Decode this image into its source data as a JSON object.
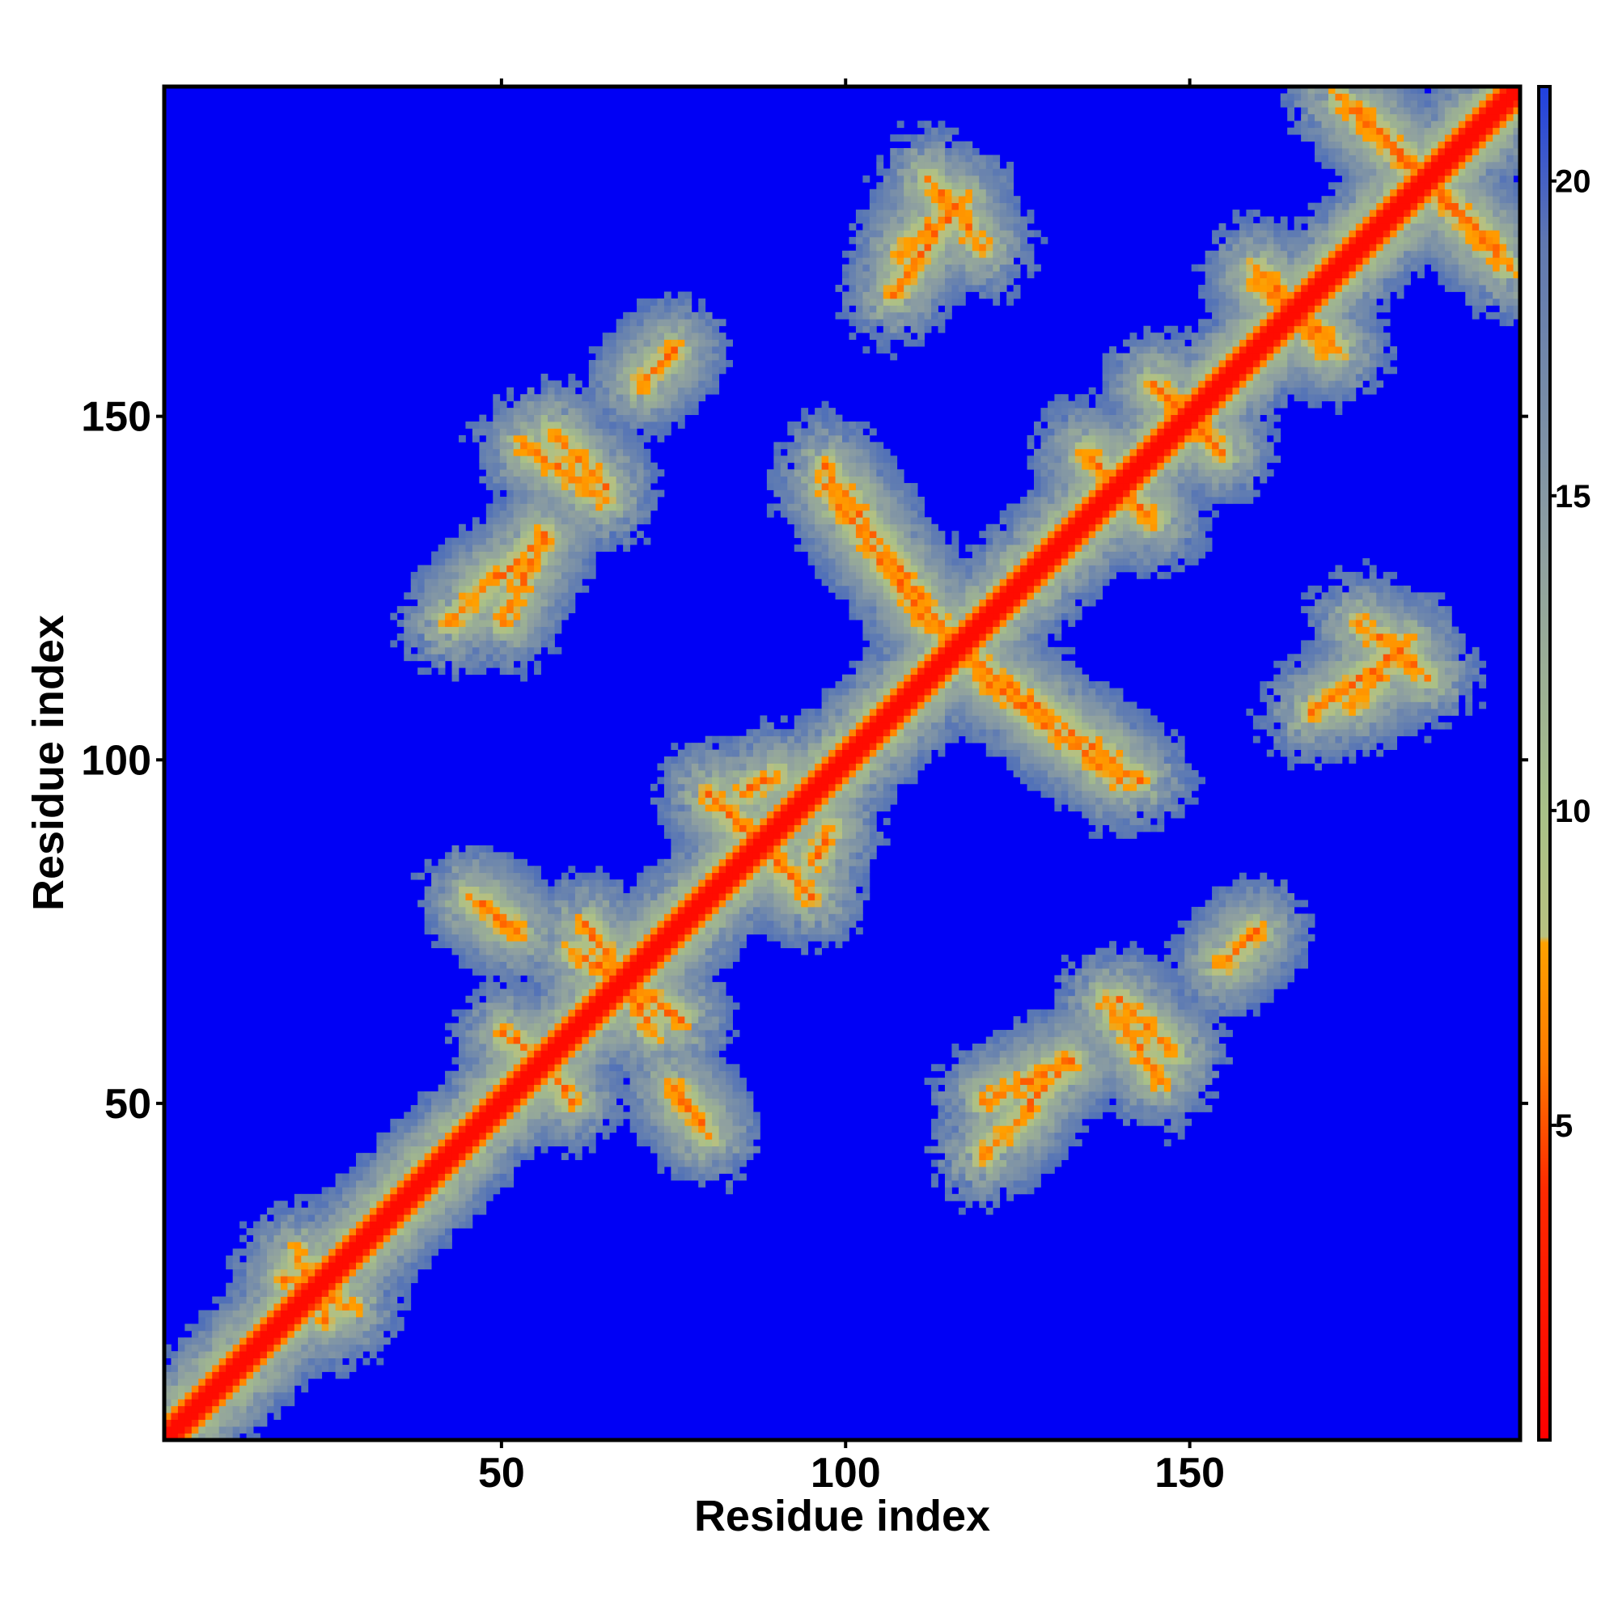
{
  "chart_data": {
    "type": "heatmap",
    "title": "",
    "xlabel": "Residue index",
    "ylabel": "Residue index",
    "xlim": [
      1,
      198
    ],
    "ylim": [
      1,
      198
    ],
    "n_residues": 198,
    "x_ticks": [
      50,
      100,
      150
    ],
    "y_ticks": [
      50,
      100,
      150
    ],
    "x_tick_labels": [
      "50",
      "100",
      "150"
    ],
    "y_tick_labels": [
      "50",
      "100",
      "150"
    ],
    "colorbar": {
      "range": [
        0,
        21.5
      ],
      "ticks": [
        5,
        10,
        15,
        20
      ],
      "tick_labels": [
        "5",
        "10",
        "15",
        "20"
      ],
      "color_stops": [
        {
          "value": 0,
          "color": "#ff0000"
        },
        {
          "value": 4,
          "color": "#ff2a00"
        },
        {
          "value": 6,
          "color": "#ff7a00"
        },
        {
          "value": 7.5,
          "color": "#ffa000"
        },
        {
          "value": 8,
          "color": "#b8c080"
        },
        {
          "value": 10,
          "color": "#a8c088"
        },
        {
          "value": 14,
          "color": "#8fa0a0"
        },
        {
          "value": 20,
          "color": "#5070b8"
        },
        {
          "value": 20.01,
          "color": "#0000f5"
        }
      ]
    },
    "cutoff_color": "#0000f5",
    "diagonal": {
      "from": 1,
      "to": 198,
      "band_width": 3
    },
    "contacts": [
      {
        "i": 50,
        "j": 120,
        "i_end": 56,
        "j_end": 133,
        "kind": "parallel"
      },
      {
        "i": 53,
        "j": 146,
        "i_end": 65,
        "j_end": 138,
        "kind": "antiparallel"
      },
      {
        "i": 70,
        "j": 155,
        "i_end": 75,
        "j_end": 160,
        "kind": "parallel"
      },
      {
        "i": 97,
        "j": 143,
        "i_end": 115,
        "j_end": 118,
        "kind": "antiparallel"
      },
      {
        "i": 108,
        "j": 174,
        "i_end": 117,
        "j_end": 182,
        "kind": "parallel"
      },
      {
        "i": 120,
        "j": 112,
        "i_end": 140,
        "j_end": 97,
        "kind": "antiparallel"
      },
      {
        "i": 120,
        "j": 42,
        "i_end": 133,
        "j_end": 56,
        "kind": "parallel"
      },
      {
        "i": 140,
        "j": 65,
        "i_end": 148,
        "j_end": 57,
        "kind": "antiparallel"
      },
      {
        "i": 168,
        "j": 107,
        "i_end": 181,
        "j_end": 116,
        "kind": "parallel"
      },
      {
        "i": 172,
        "j": 197,
        "i_end": 195,
        "j_end": 175,
        "kind": "antiparallel"
      },
      {
        "i": 47,
        "j": 79,
        "i_end": 52,
        "j_end": 75,
        "kind": "antiparallel"
      },
      {
        "i": 60,
        "j": 72,
        "i_end": 76,
        "j_end": 62,
        "kind": "antiparallel"
      },
      {
        "i": 75,
        "j": 52,
        "i_end": 80,
        "j_end": 45,
        "kind": "antiparallel"
      },
      {
        "i": 56,
        "j": 56,
        "i_end": 60,
        "j_end": 50,
        "kind": "antiparallel"
      },
      {
        "i": 18,
        "j": 24,
        "i_end": 28,
        "j_end": 20,
        "kind": "antiparallel"
      },
      {
        "i": 135,
        "j": 145,
        "i_end": 145,
        "j_end": 135,
        "kind": "antiparallel"
      },
      {
        "i": 145,
        "j": 155,
        "i_end": 155,
        "j_end": 145,
        "kind": "antiparallel"
      },
      {
        "i": 160,
        "j": 172,
        "i_end": 170,
        "j_end": 160,
        "kind": "antiparallel"
      },
      {
        "i": 80,
        "j": 95,
        "i_end": 95,
        "j_end": 80,
        "kind": "antiparallel"
      },
      {
        "i": 85,
        "j": 95,
        "i_end": 90,
        "j_end": 98,
        "kind": "parallel"
      },
      {
        "i": 155,
        "j": 70,
        "i_end": 160,
        "j_end": 75,
        "kind": "parallel"
      },
      {
        "i": 175,
        "j": 120,
        "i_end": 185,
        "j_end": 112,
        "kind": "antiparallel"
      }
    ]
  }
}
